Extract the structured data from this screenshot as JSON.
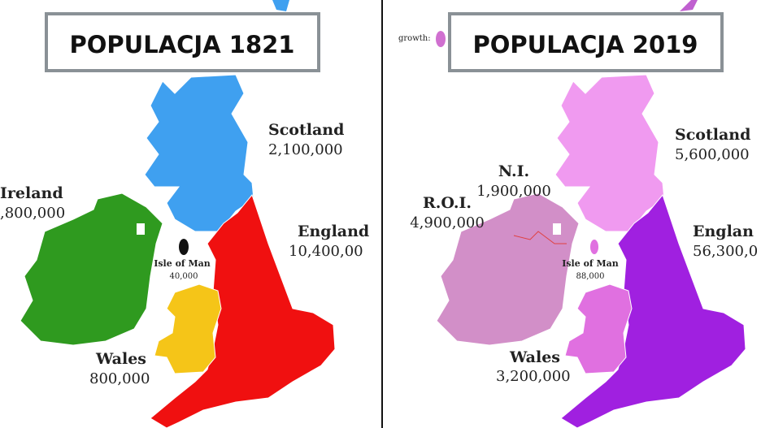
{
  "panels": [
    {
      "title": "POPULACJA 1821",
      "regions": [
        {
          "label": "Scotland",
          "population": "2,100,000"
        },
        {
          "label": "England",
          "population": "10,400,00"
        },
        {
          "label": "Ireland",
          "population": ",800,000"
        },
        {
          "label": "Isle of Man",
          "population": "40,000"
        },
        {
          "label": "Wales",
          "population": "800,000"
        }
      ]
    },
    {
      "title": "POPULACJA 2019",
      "legend_label": "growth:",
      "regions": [
        {
          "label": "Scotland",
          "population": "5,600,000"
        },
        {
          "label": "Englan",
          "population": "56,300,0"
        },
        {
          "label": "R.O.I.",
          "population": "4,900,000"
        },
        {
          "label": "N.I.",
          "population": "1,900,000"
        },
        {
          "label": "Isle of Man",
          "population": "88,000"
        },
        {
          "label": "Wales",
          "population": "3,200,000"
        }
      ]
    }
  ]
}
